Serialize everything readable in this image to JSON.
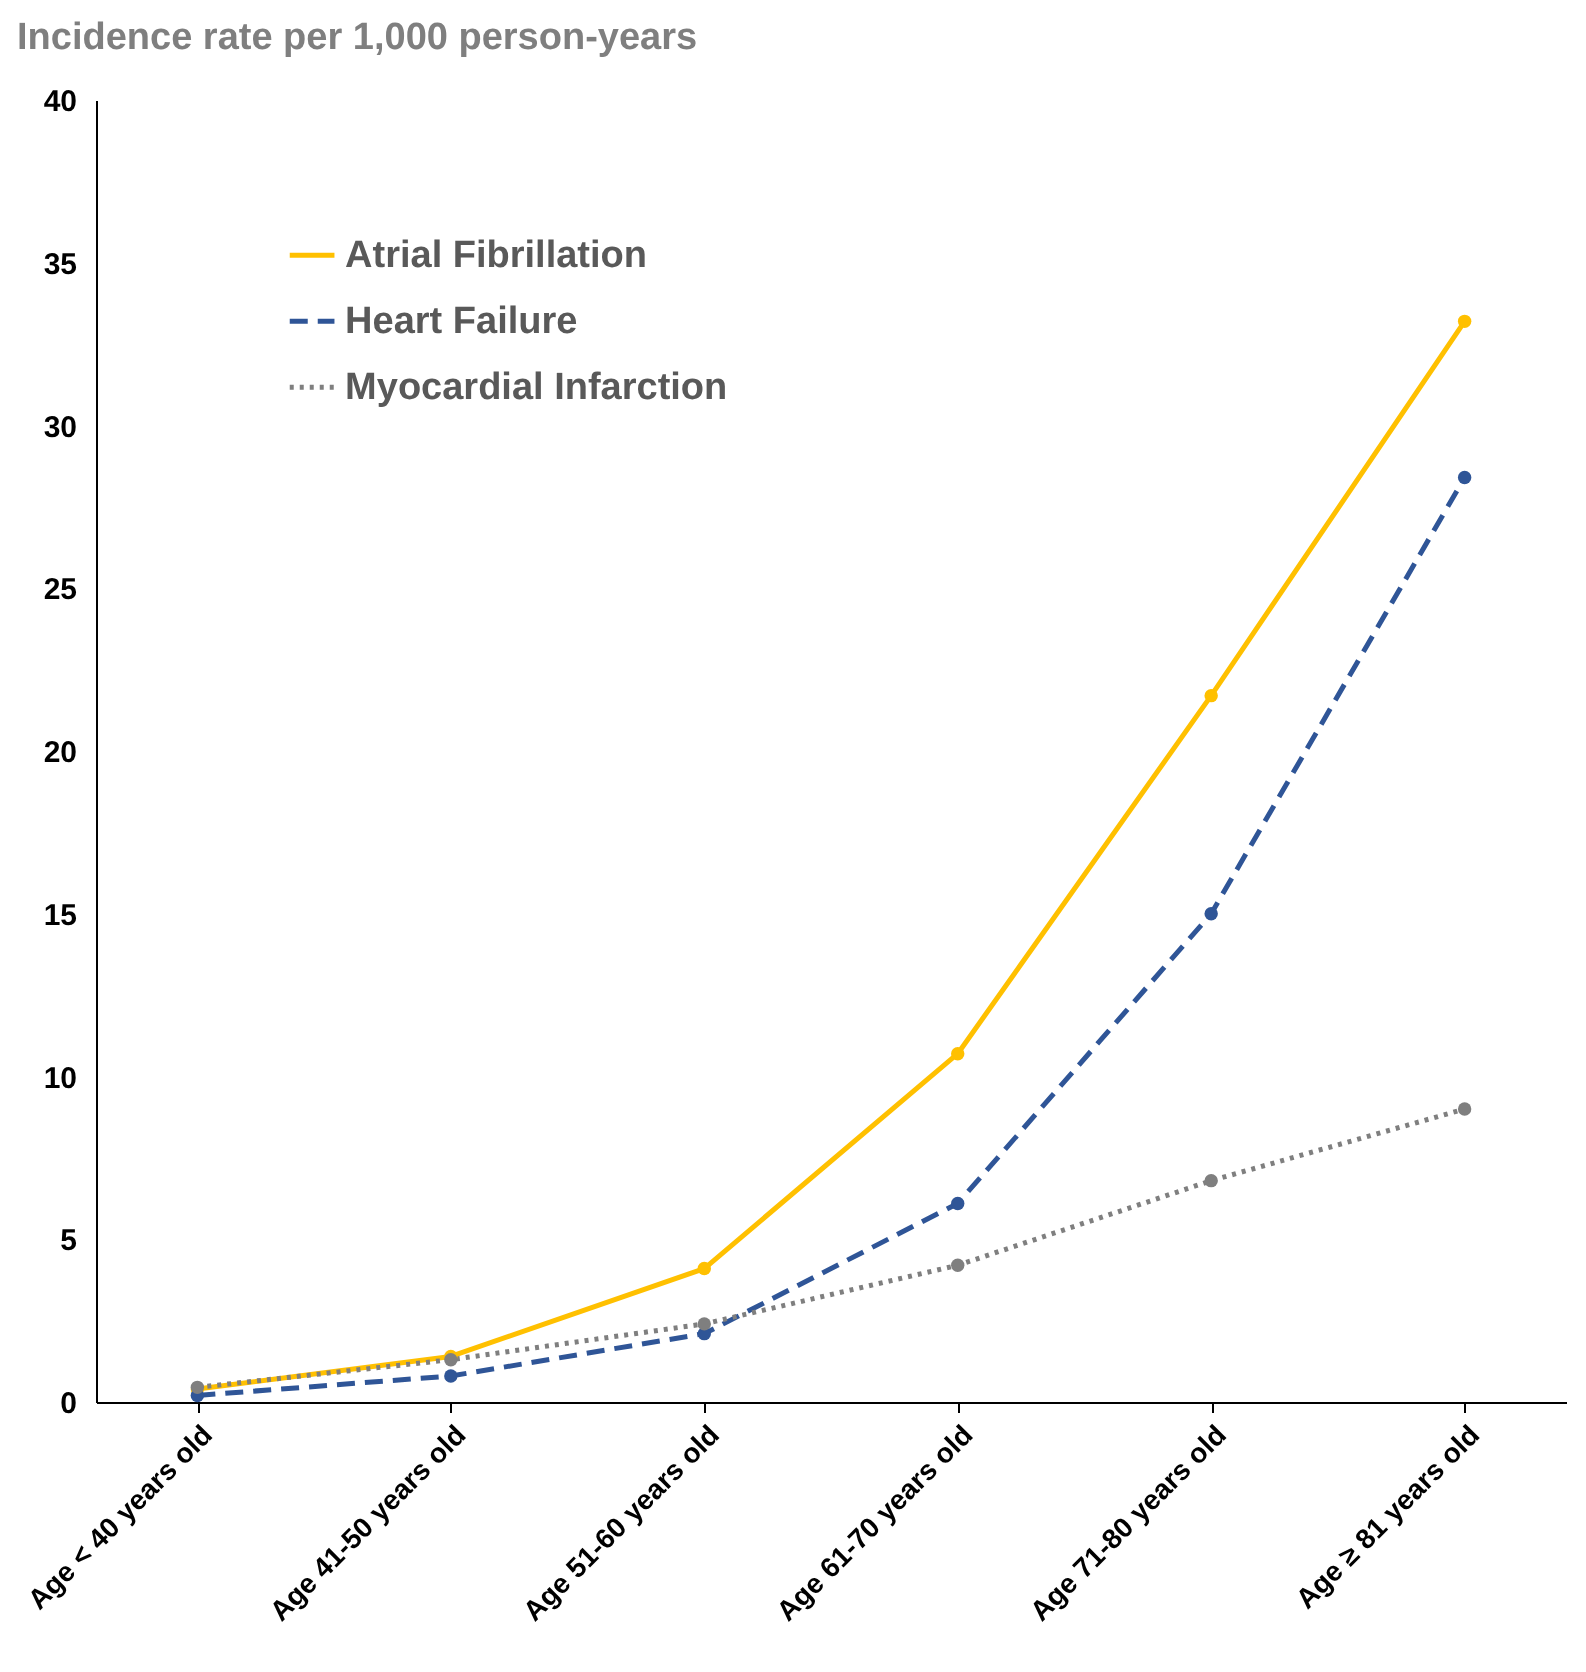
{
  "chart_data": {
    "type": "line",
    "ylabel": "Incidence rate per 1,000 person-years",
    "categories": [
      "Age < 40 years old",
      "Age 41-50 years old",
      "Age 51-60 years old",
      "Age 61-70 years old",
      "Age 71-80 years old",
      "Age ≥ 81 years old"
    ],
    "series": [
      {
        "name": "Atrial Fibrillation",
        "color": "#ffc000",
        "line_style": "solid",
        "values": [
          0.4,
          1.4,
          4.1,
          10.7,
          21.7,
          33.2
        ]
      },
      {
        "name": "Heart Failure",
        "color": "#2f5597",
        "line_style": "dashed",
        "values": [
          0.2,
          0.8,
          2.1,
          6.1,
          15.0,
          28.4
        ]
      },
      {
        "name": "Myocardial Infarction",
        "color": "#7f7f7f",
        "line_style": "dotted",
        "values": [
          0.45,
          1.3,
          2.4,
          4.2,
          6.8,
          9.0
        ]
      }
    ],
    "ylim": [
      0,
      40
    ],
    "yticks": [
      0,
      5,
      10,
      15,
      20,
      25,
      30,
      35,
      40
    ],
    "grid": false,
    "legend": "top left",
    "marker": "circle"
  }
}
